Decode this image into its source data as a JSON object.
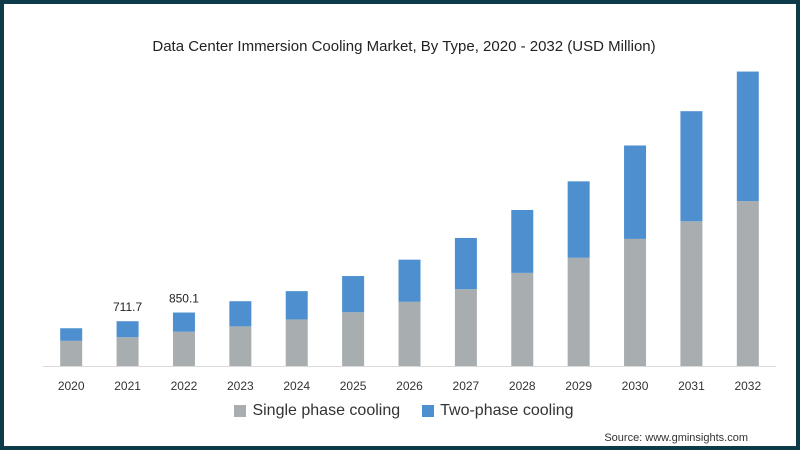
{
  "chart_data": {
    "type": "bar",
    "stacked": true,
    "title": "Data Center Immersion Cooling Market, By Type, 2020 - 2032 (USD Million)",
    "categories": [
      "2020",
      "2021",
      "2022",
      "2023",
      "2024",
      "2025",
      "2026",
      "2027",
      "2028",
      "2029",
      "2030",
      "2031",
      "2032"
    ],
    "series": [
      {
        "name": "Single phase cooling",
        "color": "#a8adaf",
        "values": [
          400,
          457,
          545,
          630,
          740,
          855,
          1020,
          1220,
          1480,
          1720,
          2020,
          2300,
          2620
        ]
      },
      {
        "name": "Two-phase cooling",
        "color": "#4e90cf",
        "values": [
          200,
          255,
          305,
          400,
          450,
          575,
          670,
          815,
          1000,
          1215,
          1485,
          1750,
          2060
        ]
      }
    ],
    "data_labels": [
      {
        "category": "2021",
        "text": "711.7"
      },
      {
        "category": "2022",
        "text": "850.1"
      }
    ],
    "ylim": [
      0,
      4800
    ],
    "legend_position": "bottom",
    "grid": false
  },
  "source": "Source: www.gminsights.com"
}
